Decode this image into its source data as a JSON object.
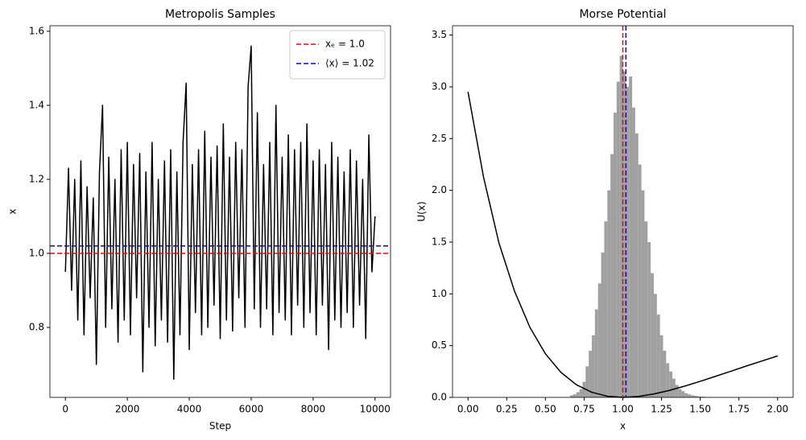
{
  "chart_data": [
    {
      "type": "line",
      "title": "Metropolis Samples",
      "xlabel": "Step",
      "ylabel": "x",
      "x": [
        0,
        100,
        200,
        300,
        400,
        500,
        600,
        700,
        800,
        900,
        1000,
        1100,
        1200,
        1300,
        1400,
        1500,
        1600,
        1700,
        1800,
        1900,
        2000,
        2100,
        2200,
        2300,
        2400,
        2500,
        2600,
        2700,
        2800,
        2900,
        3000,
        3100,
        3200,
        3300,
        3400,
        3500,
        3600,
        3700,
        3800,
        3900,
        4000,
        4100,
        4200,
        4300,
        4400,
        4500,
        4600,
        4700,
        4800,
        4900,
        5000,
        5100,
        5200,
        5300,
        5400,
        5500,
        5600,
        5700,
        5800,
        5900,
        6000,
        6100,
        6200,
        6300,
        6400,
        6500,
        6600,
        6700,
        6800,
        6900,
        7000,
        7100,
        7200,
        7300,
        7400,
        7500,
        7600,
        7700,
        7800,
        7900,
        8000,
        8100,
        8200,
        8300,
        8400,
        8500,
        8600,
        8700,
        8800,
        8900,
        9000,
        9100,
        9200,
        9300,
        9400,
        9500,
        9600,
        9700,
        9800,
        9900,
        10000
      ],
      "series": [
        {
          "color": "#000000",
          "values": [
            0.95,
            1.23,
            0.9,
            1.2,
            0.82,
            1.25,
            0.78,
            1.18,
            0.88,
            1.15,
            0.7,
            1.22,
            1.4,
            0.8,
            1.26,
            0.85,
            1.2,
            0.76,
            1.28,
            0.82,
            1.3,
            0.78,
            1.24,
            0.88,
            1.27,
            0.68,
            1.22,
            0.8,
            1.3,
            0.75,
            1.2,
            0.82,
            1.25,
            0.76,
            1.28,
            0.66,
            1.22,
            0.78,
            1.3,
            1.46,
            0.74,
            1.24,
            0.84,
            1.28,
            0.78,
            1.33,
            0.8,
            1.26,
            0.86,
            1.29,
            0.77,
            1.35,
            0.82,
            1.26,
            0.79,
            1.3,
            0.88,
            1.28,
            0.8,
            1.45,
            1.56,
            0.85,
            1.38,
            0.8,
            1.24,
            0.85,
            1.3,
            0.78,
            1.4,
            0.84,
            1.26,
            0.82,
            1.32,
            0.78,
            1.28,
            0.86,
            1.3,
            0.8,
            1.35,
            0.84,
            1.25,
            0.78,
            1.28,
            0.86,
            1.24,
            0.74,
            1.3,
            0.82,
            1.26,
            0.8,
            1.22,
            0.84,
            1.28,
            0.8,
            1.25,
            0.86,
            1.2,
            0.77,
            1.32,
            0.95,
            1.1
          ]
        }
      ],
      "reference_lines": [
        {
          "orientation": "horizontal",
          "value": 1.0,
          "color": "#ff0000",
          "name": "xₑ = 1.0"
        },
        {
          "orientation": "horizontal",
          "value": 1.02,
          "color": "#0000ff",
          "name": "⟨x⟩ = 1.02"
        }
      ],
      "legend": "upper right",
      "xlim": [
        -500,
        10500
      ],
      "ylim": [
        0.611,
        1.615
      ],
      "xticks": [
        0,
        2000,
        4000,
        6000,
        8000,
        10000
      ],
      "yticks": [
        0.8,
        {
          "value": 1,
          "label": "1.0"
        },
        1.2,
        1.4,
        1.6
      ]
    },
    {
      "type": "histogram",
      "title": "Morse Potential",
      "xlabel": "x",
      "ylabel": "U(x)",
      "bins": [
        0.66,
        0.68,
        0.7,
        0.72,
        0.74,
        0.76,
        0.78,
        0.8,
        0.82,
        0.84,
        0.86,
        0.88,
        0.9,
        0.92,
        0.94,
        0.96,
        0.98,
        1.0,
        1.02,
        1.04,
        1.06,
        1.08,
        1.1,
        1.12,
        1.14,
        1.16,
        1.18,
        1.2,
        1.22,
        1.24,
        1.26,
        1.28,
        1.3,
        1.32,
        1.34,
        1.36,
        1.38,
        1.4,
        1.42,
        1.44,
        1.46,
        1.48,
        1.5,
        1.52,
        1.54,
        1.56,
        1.58
      ],
      "values": [
        0.02,
        0.03,
        0.05,
        0.08,
        0.15,
        0.3,
        0.45,
        0.6,
        0.85,
        1.1,
        1.4,
        1.7,
        2.0,
        2.35,
        2.75,
        3.05,
        3.3,
        3.15,
        3.0,
        3.1,
        2.8,
        2.55,
        2.25,
        2.0,
        1.7,
        1.5,
        1.2,
        1.0,
        0.8,
        0.6,
        0.45,
        0.33,
        0.25,
        0.18,
        0.12,
        0.08,
        0.06,
        0.04,
        0.03,
        0.02,
        0.015,
        0.01,
        0.008,
        0.005,
        0.004,
        0.003
      ],
      "color": "#a0a0a0",
      "series": [
        {
          "color": "#000000",
          "x": [
            0,
            0.1,
            0.2,
            0.3,
            0.4,
            0.5,
            0.6,
            0.7,
            0.8,
            0.9,
            1.0,
            1.1,
            1.2,
            1.3,
            1.4,
            1.5,
            1.6,
            1.7,
            1.8,
            1.9,
            2.0
          ],
          "values": [
            2.952,
            2.13,
            1.491,
            1.028,
            0.676,
            0.421,
            0.242,
            0.122,
            0.049,
            0.011,
            0,
            0.009,
            0.033,
            0.067,
            0.109,
            0.155,
            0.204,
            0.253,
            0.304,
            0.352,
            0.4
          ]
        }
      ],
      "reference_lines": [
        {
          "orientation": "vertical",
          "value": 1.0,
          "color": "#ff0000"
        },
        {
          "orientation": "vertical",
          "value": 1.02,
          "color": "#0000ff"
        }
      ],
      "xlim": [
        -0.1,
        2.1
      ],
      "ylim": [
        0,
        3.59
      ],
      "xticks": [
        {
          "value": 0,
          "label": "0.00"
        },
        0.25,
        {
          "value": 0.5,
          "label": "0.50"
        },
        0.75,
        {
          "value": 1,
          "label": "1.00"
        },
        1.25,
        {
          "value": 1.5,
          "label": "1.50"
        },
        1.75,
        {
          "value": 2,
          "label": "2.00"
        }
      ],
      "yticks": [
        {
          "value": 0,
          "label": "0.0"
        },
        0.5,
        {
          "value": 1,
          "label": "1.0"
        },
        1.5,
        {
          "value": 2,
          "label": "2.0"
        },
        2.5,
        {
          "value": 3,
          "label": "3.0"
        },
        3.5
      ]
    }
  ]
}
